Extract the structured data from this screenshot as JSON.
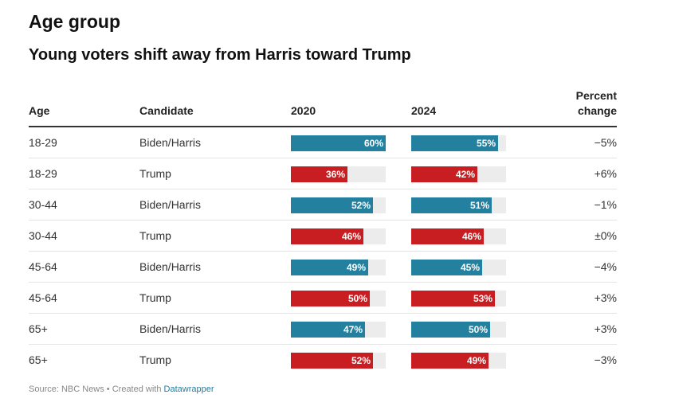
{
  "section_title": "Age group",
  "chart_title": "Young voters shift away from Harris toward Trump",
  "headers": {
    "age": "Age",
    "candidate": "Candidate",
    "y2020": "2020",
    "y2024": "2024",
    "change_line1": "Percent",
    "change_line2": "change"
  },
  "colors": {
    "biden_harris": "#23809f",
    "trump": "#c91e21",
    "track": "#ececec"
  },
  "chart_data": {
    "type": "table",
    "title": "Young voters shift away from Harris toward Trump",
    "columns": [
      "Age",
      "Candidate",
      "2020",
      "2024",
      "Percent change"
    ],
    "scale_max": 100,
    "rows": [
      {
        "age": "18-29",
        "candidate": "Biden/Harris",
        "party": "biden_harris",
        "v2020": 60,
        "v2024": 55,
        "label2020": "60%",
        "label2024": "55%",
        "change": "−5%"
      },
      {
        "age": "18-29",
        "candidate": "Trump",
        "party": "trump",
        "v2020": 36,
        "v2024": 42,
        "label2020": "36%",
        "label2024": "42%",
        "change": "+6%"
      },
      {
        "age": "30-44",
        "candidate": "Biden/Harris",
        "party": "biden_harris",
        "v2020": 52,
        "v2024": 51,
        "label2020": "52%",
        "label2024": "51%",
        "change": "−1%"
      },
      {
        "age": "30-44",
        "candidate": "Trump",
        "party": "trump",
        "v2020": 46,
        "v2024": 46,
        "label2020": "46%",
        "label2024": "46%",
        "change": "±0%"
      },
      {
        "age": "45-64",
        "candidate": "Biden/Harris",
        "party": "biden_harris",
        "v2020": 49,
        "v2024": 45,
        "label2020": "49%",
        "label2024": "45%",
        "change": "−4%"
      },
      {
        "age": "45-64",
        "candidate": "Trump",
        "party": "trump",
        "v2020": 50,
        "v2024": 53,
        "label2020": "50%",
        "label2024": "53%",
        "change": "+3%"
      },
      {
        "age": "65+",
        "candidate": "Biden/Harris",
        "party": "biden_harris",
        "v2020": 47,
        "v2024": 50,
        "label2020": "47%",
        "label2024": "50%",
        "change": "+3%"
      },
      {
        "age": "65+",
        "candidate": "Trump",
        "party": "trump",
        "v2020": 52,
        "v2024": 49,
        "label2020": "52%",
        "label2024": "49%",
        "change": "−3%"
      }
    ]
  },
  "footer": {
    "source_text": "Source: NBC News • Created with ",
    "link_text": "Datawrapper"
  }
}
